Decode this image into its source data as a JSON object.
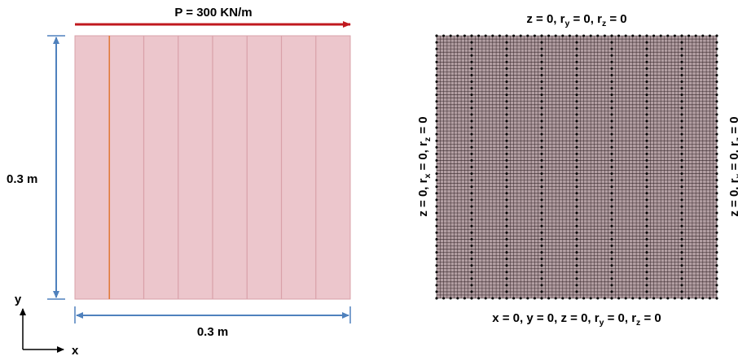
{
  "left_panel": {
    "load_label": "P = 300 KN/m",
    "height_label": "0.3 m",
    "width_label": "0.3 m",
    "axis_y_label": "y",
    "axis_x_label": "x",
    "colors": {
      "plate_fill": "#ecc6cc",
      "plate_edge": "#d9a0a8",
      "first_divider": "#e07a3a",
      "divider": "#d9a0a8",
      "load_arrow": "#c0181e",
      "dimension": "#4f81bd",
      "axis": "#000000"
    }
  },
  "right_panel": {
    "top_bc": {
      "base": "z = 0, r",
      "s1": "y",
      "mid": " = 0, r",
      "s2": "z",
      "end": " = 0"
    },
    "bottom_bc": {
      "base": "x = 0, y = 0, z = 0, r",
      "s1": "y",
      "mid": " = 0, r",
      "s2": "z",
      "end": " = 0"
    },
    "left_bc": {
      "base": "z = 0, r",
      "s1": "x",
      "mid": " = 0, r",
      "s2": "z",
      "end": " = 0"
    },
    "right_bc": {
      "base": "z = 0, r",
      "s1": "x",
      "mid": " = 0, r",
      "s2": "z",
      "end": " = 0"
    },
    "colors": {
      "mesh_fill": "#b39fa3",
      "mesh_line": "#3a2a2e",
      "node": "#000000"
    }
  }
}
